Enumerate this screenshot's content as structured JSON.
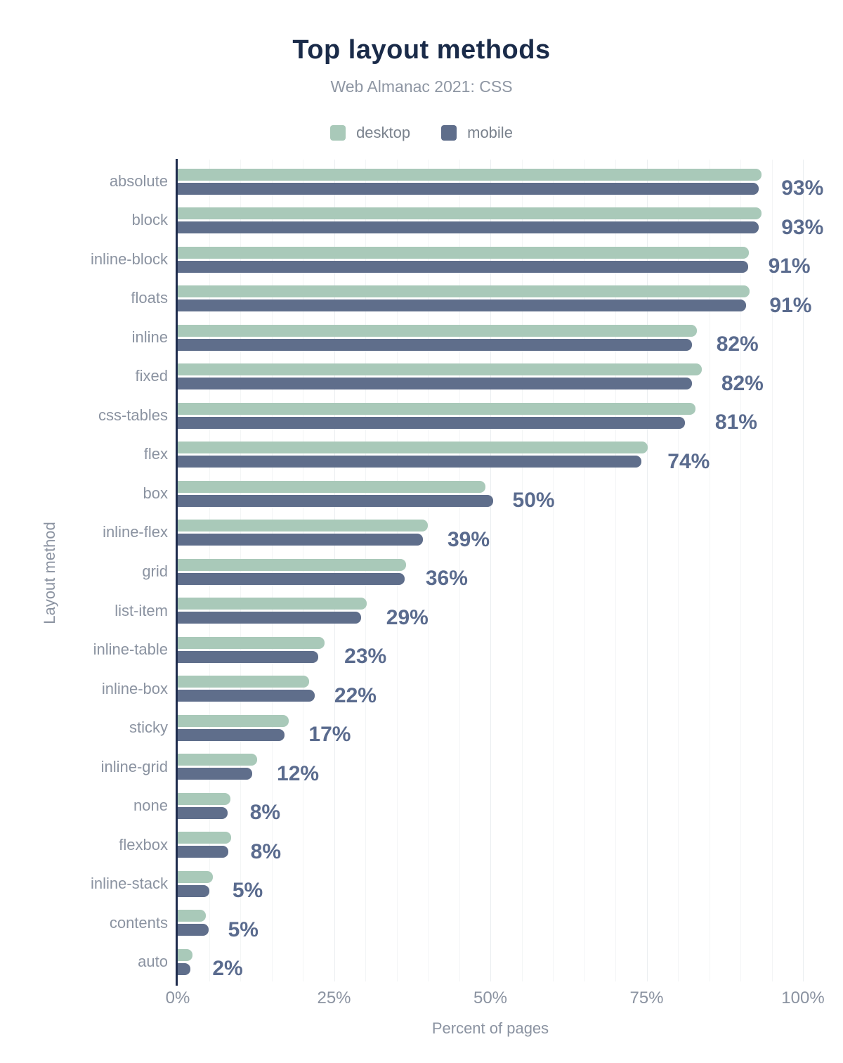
{
  "header": {
    "title": "Top layout methods",
    "subtitle": "Web Almanac 2021: CSS"
  },
  "legend": [
    {
      "label": "desktop",
      "color": "#a9c9b9"
    },
    {
      "label": "mobile",
      "color": "#5f6e8b"
    }
  ],
  "colors": {
    "desktop_bar": "#a9c9b9",
    "mobile_bar": "#5f6e8b",
    "title": "#1a2b49",
    "axis_line": "#1e2c4d",
    "category_label": "#8b93a1",
    "value_label": "#5a6b8e",
    "grid_minor": "#f3f5f6",
    "grid_major": "#ebeef1"
  },
  "chart_data": {
    "type": "bar",
    "orientation": "horizontal",
    "title": "Top layout methods",
    "subtitle": "Web Almanac 2021: CSS",
    "xlabel": "Percent of pages",
    "ylabel": "Layout method",
    "xlim": [
      0,
      100
    ],
    "x_ticks": [
      {
        "value": 0,
        "label": "0%"
      },
      {
        "value": 25,
        "label": "25%"
      },
      {
        "value": 50,
        "label": "50%"
      },
      {
        "value": 75,
        "label": "75%"
      },
      {
        "value": 100,
        "label": "100%"
      }
    ],
    "grid": "vertical gridlines every 5%, major every 25%",
    "legend_position": "top",
    "categories": [
      "absolute",
      "block",
      "inline-block",
      "floats",
      "inline",
      "fixed",
      "css-tables",
      "flex",
      "box",
      "inline-flex",
      "grid",
      "list-item",
      "inline-table",
      "inline-box",
      "sticky",
      "inline-grid",
      "none",
      "flexbox",
      "inline-stack",
      "contents",
      "auto"
    ],
    "series": [
      {
        "name": "desktop",
        "color": "#a9c9b9",
        "values": [
          93.4,
          93.4,
          91.3,
          91.5,
          83.0,
          83.8,
          82.8,
          75.2,
          49.2,
          40.0,
          36.5,
          30.2,
          23.5,
          21.0,
          17.8,
          12.7,
          8.4,
          8.5,
          5.6,
          4.5,
          2.4
        ]
      },
      {
        "name": "mobile",
        "color": "#5f6e8b",
        "values": [
          92.9,
          92.9,
          91.2,
          90.9,
          82.3,
          82.2,
          81.1,
          74.2,
          50.4,
          39.2,
          36.3,
          29.3,
          22.5,
          21.9,
          17.1,
          11.9,
          8.0,
          8.1,
          5.1,
          4.9,
          2.0
        ]
      }
    ],
    "value_labels": [
      "93%",
      "93%",
      "91%",
      "91%",
      "82%",
      "82%",
      "81%",
      "74%",
      "50%",
      "39%",
      "36%",
      "29%",
      "23%",
      "22%",
      "17%",
      "12%",
      "8%",
      "8%",
      "5%",
      "5%",
      "2%"
    ]
  }
}
